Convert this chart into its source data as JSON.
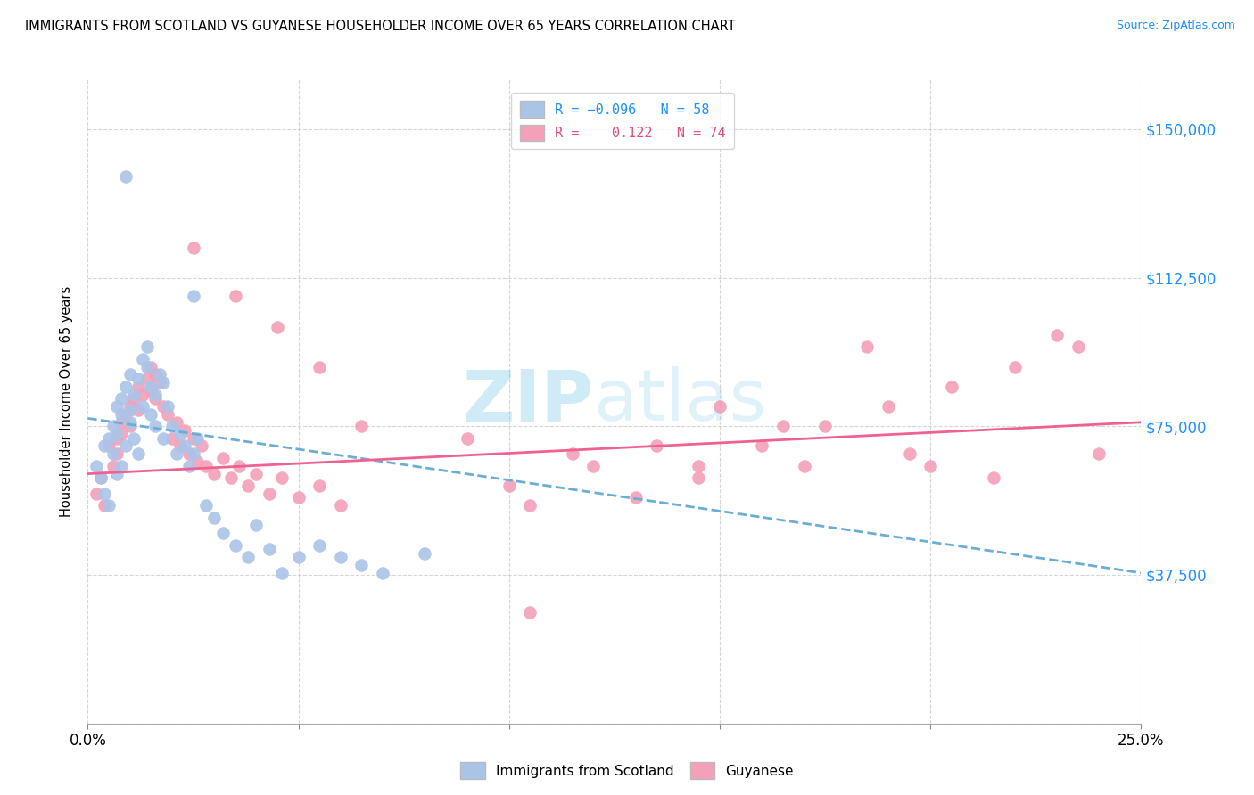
{
  "title": "IMMIGRANTS FROM SCOTLAND VS GUYANESE HOUSEHOLDER INCOME OVER 65 YEARS CORRELATION CHART",
  "source": "Source: ZipAtlas.com",
  "ylabel": "Householder Income Over 65 years",
  "xlim": [
    0.0,
    0.25
  ],
  "ylim": [
    0,
    162500
  ],
  "yticks": [
    0,
    37500,
    75000,
    112500,
    150000
  ],
  "ytick_labels": [
    "",
    "$37,500",
    "$75,000",
    "$112,500",
    "$150,000"
  ],
  "xticks": [
    0.0,
    0.05,
    0.1,
    0.15,
    0.2,
    0.25
  ],
  "xtick_labels": [
    "0.0%",
    "",
    "",
    "",
    "",
    "25.0%"
  ],
  "color_scotland": "#aac4e8",
  "color_guyanese": "#f4a0b8",
  "color_scotland_line": "#6aaed6",
  "color_guyanese_line": "#f06090",
  "scotland_line_x": [
    0.0,
    0.25
  ],
  "scotland_line_y": [
    77000,
    38000
  ],
  "guyanese_line_x": [
    0.0,
    0.25
  ],
  "guyanese_line_y": [
    63000,
    76000
  ],
  "scotland_x": [
    0.002,
    0.003,
    0.004,
    0.004,
    0.005,
    0.005,
    0.006,
    0.006,
    0.007,
    0.007,
    0.007,
    0.008,
    0.008,
    0.008,
    0.009,
    0.009,
    0.01,
    0.01,
    0.01,
    0.011,
    0.011,
    0.012,
    0.012,
    0.013,
    0.013,
    0.014,
    0.014,
    0.015,
    0.015,
    0.016,
    0.016,
    0.017,
    0.018,
    0.018,
    0.019,
    0.02,
    0.021,
    0.022,
    0.023,
    0.024,
    0.025,
    0.026,
    0.028,
    0.03,
    0.032,
    0.035,
    0.038,
    0.04,
    0.043,
    0.046,
    0.05,
    0.055,
    0.06,
    0.065,
    0.07,
    0.08,
    0.009,
    0.025
  ],
  "scotland_y": [
    65000,
    62000,
    58000,
    70000,
    55000,
    72000,
    68000,
    75000,
    63000,
    80000,
    73000,
    78000,
    65000,
    82000,
    70000,
    85000,
    88000,
    79000,
    76000,
    72000,
    83000,
    68000,
    87000,
    80000,
    92000,
    95000,
    90000,
    85000,
    78000,
    83000,
    75000,
    88000,
    72000,
    86000,
    80000,
    75000,
    68000,
    73000,
    70000,
    65000,
    68000,
    72000,
    55000,
    52000,
    48000,
    45000,
    42000,
    50000,
    44000,
    38000,
    42000,
    45000,
    42000,
    40000,
    38000,
    43000,
    138000,
    108000
  ],
  "guyanese_x": [
    0.002,
    0.003,
    0.004,
    0.005,
    0.006,
    0.007,
    0.007,
    0.008,
    0.008,
    0.009,
    0.01,
    0.01,
    0.011,
    0.012,
    0.012,
    0.013,
    0.014,
    0.015,
    0.015,
    0.016,
    0.016,
    0.017,
    0.018,
    0.019,
    0.02,
    0.021,
    0.022,
    0.023,
    0.024,
    0.025,
    0.026,
    0.027,
    0.028,
    0.03,
    0.032,
    0.034,
    0.036,
    0.038,
    0.04,
    0.043,
    0.046,
    0.05,
    0.055,
    0.06,
    0.025,
    0.035,
    0.045,
    0.055,
    0.065,
    0.105,
    0.12,
    0.135,
    0.15,
    0.165,
    0.185,
    0.2,
    0.215,
    0.23,
    0.24,
    0.09,
    0.1,
    0.115,
    0.13,
    0.145,
    0.16,
    0.175,
    0.19,
    0.205,
    0.22,
    0.235,
    0.145,
    0.17,
    0.195,
    0.105
  ],
  "guyanese_y": [
    58000,
    62000,
    55000,
    70000,
    65000,
    72000,
    68000,
    76000,
    73000,
    78000,
    80000,
    75000,
    82000,
    85000,
    79000,
    83000,
    87000,
    90000,
    84000,
    88000,
    82000,
    86000,
    80000,
    78000,
    72000,
    76000,
    70000,
    74000,
    68000,
    72000,
    66000,
    70000,
    65000,
    63000,
    67000,
    62000,
    65000,
    60000,
    63000,
    58000,
    62000,
    57000,
    60000,
    55000,
    120000,
    108000,
    100000,
    90000,
    75000,
    55000,
    65000,
    70000,
    80000,
    75000,
    95000,
    65000,
    62000,
    98000,
    68000,
    72000,
    60000,
    68000,
    57000,
    65000,
    70000,
    75000,
    80000,
    85000,
    90000,
    95000,
    62000,
    65000,
    68000,
    28000
  ]
}
